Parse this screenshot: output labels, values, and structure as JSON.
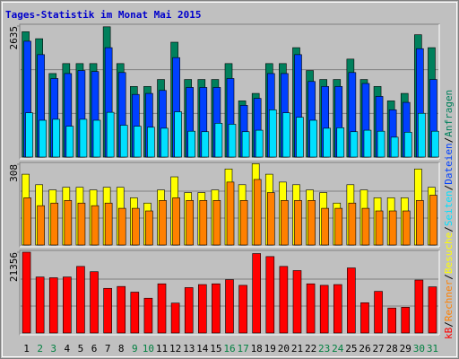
{
  "chart_data": {
    "type": "bar",
    "title": "Tages-Statistik im Monat Mai 2015",
    "title_color": "#0000cc",
    "categories": [
      "1",
      "2",
      "3",
      "4",
      "5",
      "6",
      "7",
      "8",
      "9",
      "10",
      "11",
      "12",
      "13",
      "14",
      "15",
      "16",
      "17",
      "18",
      "19",
      "20",
      "21",
      "22",
      "23",
      "24",
      "25",
      "26",
      "27",
      "28",
      "29",
      "30",
      "31"
    ],
    "category_colors": [
      "#000000",
      "#008040",
      "#008040",
      "#000000",
      "#000000",
      "#000000",
      "#000000",
      "#000000",
      "#008040",
      "#008040",
      "#000000",
      "#000000",
      "#000000",
      "#000000",
      "#000000",
      "#008040",
      "#008040",
      "#000000",
      "#000000",
      "#000000",
      "#000000",
      "#000000",
      "#008040",
      "#008040",
      "#000000",
      "#000000",
      "#000000",
      "#000000",
      "#000000",
      "#008040",
      "#008040"
    ],
    "legend_separator": "/",
    "panels": [
      {
        "ylim": [
          0,
          2635
        ],
        "yticks": [
          2635
        ],
        "series": [
          {
            "name": "Anfragen",
            "color": "#00805c",
            "values": [
              2520,
              2380,
              1680,
              1880,
              1880,
              1880,
              2620,
              1880,
              1420,
              1420,
              1560,
              2310,
              1560,
              1560,
              1560,
              1880,
              1130,
              1280,
              1880,
              1880,
              2200,
              1740,
              1560,
              1560,
              1970,
              1560,
              1420,
              1130,
              1280,
              2460,
              2200
            ]
          },
          {
            "name": "Dateien",
            "color": "#0040ff",
            "values": [
              2330,
              2060,
              1580,
              1680,
              1740,
              1720,
              2200,
              1700,
              1260,
              1280,
              1340,
              2000,
              1400,
              1400,
              1400,
              1580,
              1040,
              1180,
              1680,
              1680,
              2060,
              1520,
              1420,
              1420,
              1700,
              1480,
              1220,
              950,
              1100,
              2180,
              1560
            ]
          },
          {
            "name": "Seiten",
            "color": "#00e0ff",
            "values": [
              890,
              740,
              760,
              620,
              760,
              740,
              900,
              640,
              620,
              600,
              580,
              910,
              520,
              510,
              680,
              660,
              510,
              540,
              950,
              890,
              800,
              740,
              580,
              590,
              510,
              540,
              520,
              400,
              500,
              880,
              520
            ]
          }
        ]
      },
      {
        "ylim": [
          0,
          308
        ],
        "yticks": [
          308
        ],
        "series": [
          {
            "name": "Besuche",
            "color": "#ffff00",
            "values": [
              270,
              230,
              210,
              220,
              220,
              210,
              220,
              220,
              180,
              160,
              210,
              260,
              200,
              200,
              210,
              290,
              230,
              310,
              270,
              240,
              230,
              210,
              200,
              160,
              230,
              210,
              180,
              180,
              180,
              290,
              220
            ]
          },
          {
            "name": "Rechner",
            "color": "#ff8000",
            "values": [
              180,
              150,
              160,
              170,
              160,
              150,
              160,
              140,
              140,
              130,
              170,
              180,
              170,
              170,
              170,
              240,
              170,
              250,
              200,
              170,
              170,
              170,
              140,
              140,
              160,
              140,
              130,
              130,
              130,
              170,
              190
            ]
          }
        ]
      },
      {
        "ylim": [
          0,
          21356
        ],
        "yticks": [
          21356
        ],
        "series": [
          {
            "name": "kB",
            "color": "#ff0000",
            "values": [
              21356,
              14800,
              14600,
              14800,
              17600,
              16200,
              11800,
              12300,
              10800,
              9200,
              13000,
              7900,
              12000,
              12800,
              13000,
              14100,
              12600,
              21000,
              20200,
              17600,
              16500,
              13000,
              12600,
              12800,
              17200,
              8000,
              11000,
              6600,
              6800,
              14000,
              12200
            ]
          }
        ]
      }
    ]
  }
}
